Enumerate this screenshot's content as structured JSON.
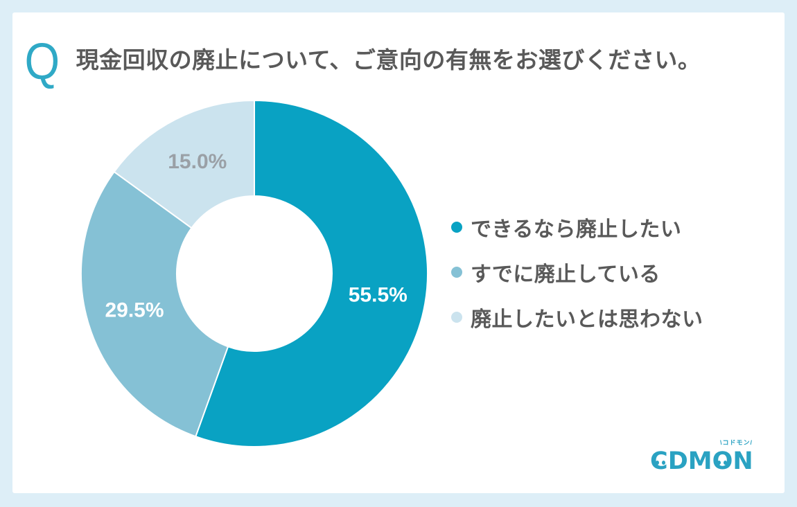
{
  "header": {
    "q_mark": "Q",
    "title": "現金回収の廃止について、ご意向の有無をお選びください。"
  },
  "chart_data": {
    "type": "pie",
    "subtype": "donut",
    "title": "現金回収の廃止について、ご意向の有無をお選びください。",
    "categories": [
      "できるなら廃止したい",
      "すでに廃止している",
      "廃止したいとは思わない"
    ],
    "values": [
      55.5,
      29.5,
      15.0
    ],
    "labels": [
      "55.5%",
      "29.5%",
      "15.0%"
    ],
    "colors": [
      "#09a2c3",
      "#85c1d5",
      "#cbe3ee"
    ],
    "label_colors": [
      "#ffffff",
      "#ffffff",
      "#9aa0a6"
    ],
    "start_angle_deg": 0,
    "direction": "clockwise",
    "inner_radius_ratio": 0.448,
    "legend_position": "right",
    "grid": false
  },
  "logo": {
    "cheer": "\\コドモン/",
    "part_c": "C",
    "part_dm": "DM",
    "part_o": "O",
    "part_n": "N"
  },
  "colors": {
    "background": "#ddeef7",
    "card": "#ffffff",
    "accent_teal": "#09a2c3",
    "text_gray": "#595959",
    "logo_teal": "#2aa2c2"
  }
}
